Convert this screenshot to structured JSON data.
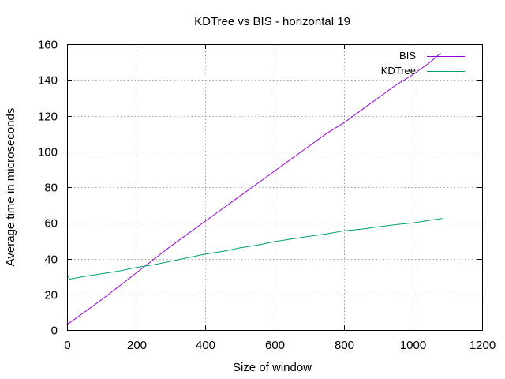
{
  "chart_data": {
    "type": "line",
    "title": "KDTree vs BIS - horizontal 19",
    "xlabel": "Size of window",
    "ylabel": "Average time in microseconds",
    "xlim": [
      0,
      1200
    ],
    "ylim": [
      0,
      160
    ],
    "x_ticks": [
      "0",
      "200",
      "400",
      "600",
      "800",
      "1000",
      "1200"
    ],
    "y_ticks": [
      "0",
      "20",
      "40",
      "60",
      "80",
      "100",
      "120",
      "140",
      "160"
    ],
    "grid": true,
    "legend_position": "top-right",
    "series": [
      {
        "name": "BIS",
        "color": "#9400d3",
        "points": [
          [
            0,
            3
          ],
          [
            50,
            10
          ],
          [
            100,
            17
          ],
          [
            150,
            24.5
          ],
          [
            200,
            32
          ],
          [
            250,
            39.5
          ],
          [
            300,
            47
          ],
          [
            350,
            54
          ],
          [
            400,
            61
          ],
          [
            450,
            68
          ],
          [
            500,
            75
          ],
          [
            550,
            82
          ],
          [
            600,
            89
          ],
          [
            650,
            96
          ],
          [
            700,
            103
          ],
          [
            750,
            110
          ],
          [
            800,
            116
          ],
          [
            850,
            123
          ],
          [
            900,
            130
          ],
          [
            950,
            137
          ],
          [
            1000,
            143
          ],
          [
            1050,
            150
          ],
          [
            1080,
            155
          ]
        ]
      },
      {
        "name": "KDTree",
        "color": "#009e73",
        "points": [
          [
            0,
            31
          ],
          [
            8,
            28.5
          ],
          [
            50,
            30
          ],
          [
            100,
            31.5
          ],
          [
            150,
            33
          ],
          [
            200,
            35
          ],
          [
            250,
            36.5
          ],
          [
            300,
            38.5
          ],
          [
            350,
            40.5
          ],
          [
            400,
            42.5
          ],
          [
            450,
            44
          ],
          [
            500,
            46
          ],
          [
            550,
            47.5
          ],
          [
            600,
            49.5
          ],
          [
            650,
            51
          ],
          [
            700,
            52.5
          ],
          [
            750,
            53.8
          ],
          [
            800,
            55.5
          ],
          [
            850,
            56.5
          ],
          [
            900,
            57.8
          ],
          [
            950,
            59
          ],
          [
            1000,
            60
          ],
          [
            1050,
            61.5
          ],
          [
            1085,
            62.5
          ]
        ]
      }
    ]
  }
}
